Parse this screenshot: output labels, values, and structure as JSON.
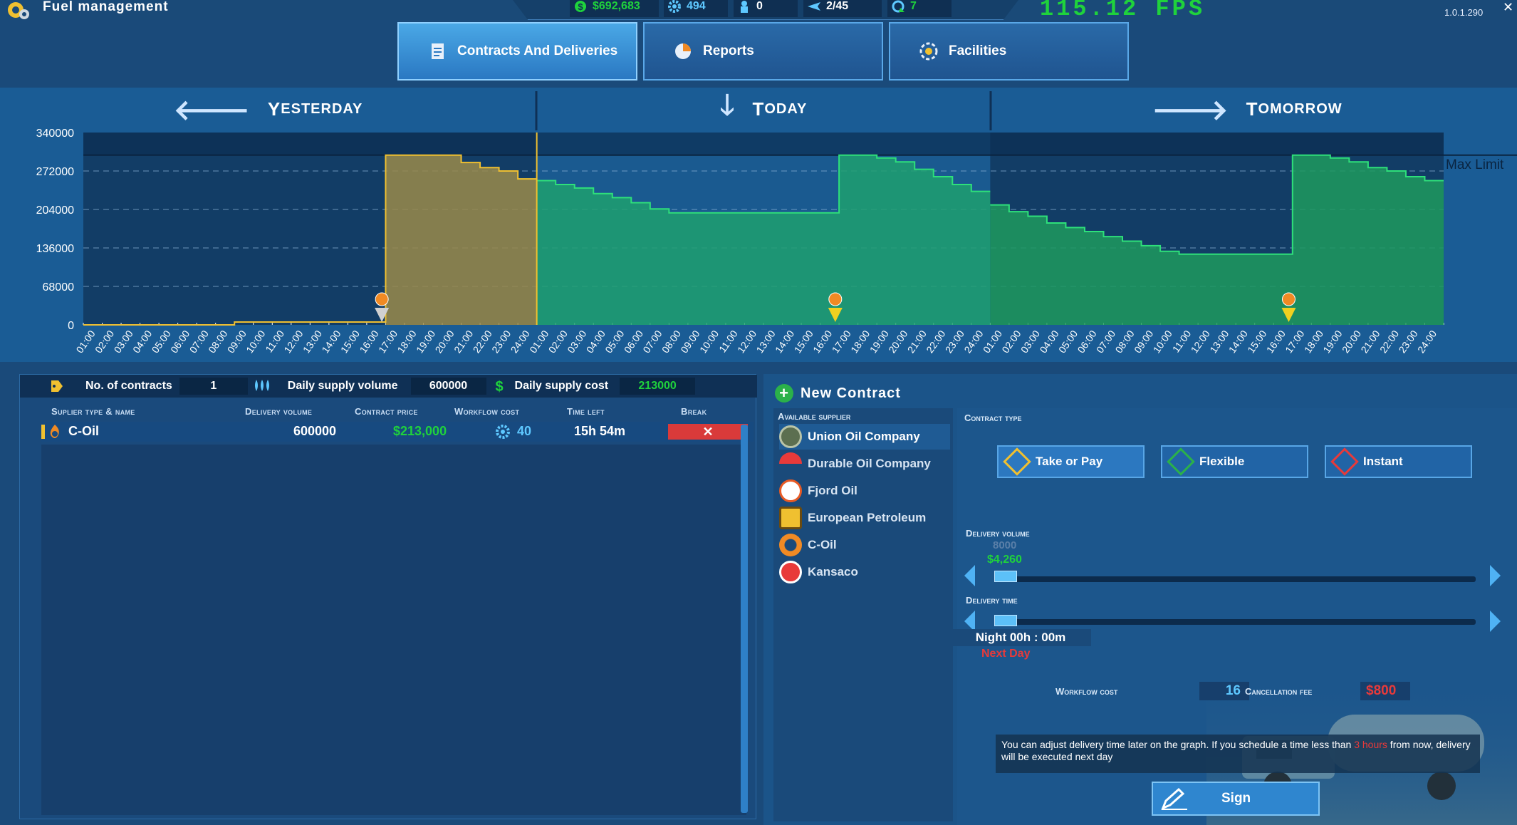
{
  "app": {
    "title": "Fuel management",
    "fps": "115.12 FPS",
    "version": "1.0.1.290"
  },
  "resources": {
    "money": "$692,683",
    "workforce": "494",
    "staff": "0",
    "flights": "2/45",
    "eco": "7"
  },
  "colors": {
    "positive": "#1fd23c",
    "negative": "#e83a3a",
    "accent": "#5ec8ff",
    "gold": "#f0c030"
  },
  "tabs": [
    {
      "label": "Contracts And Deliveries",
      "icon": "document-icon",
      "active": true
    },
    {
      "label": "Reports",
      "icon": "pie-chart-icon",
      "active": false
    },
    {
      "label": "Facilities",
      "icon": "facility-icon",
      "active": false
    }
  ],
  "days": [
    {
      "first": "Y",
      "rest": "ESTERDAY",
      "arrow": "left-arrow-icon"
    },
    {
      "first": "T",
      "rest": "ODAY",
      "arrow": "down-arrow-icon"
    },
    {
      "first": "T",
      "rest": "OMORROW",
      "arrow": "right-arrow-icon"
    }
  ],
  "chart_data": {
    "type": "area",
    "ylim": [
      0,
      340000
    ],
    "yticks": [
      "340000",
      "272000",
      "204000",
      "136000",
      "68000",
      "0"
    ],
    "max_limit_label": "Max Limit",
    "max_limit": 300000,
    "x_labels": [
      "01:00",
      "02:00",
      "03:00",
      "04:00",
      "05:00",
      "06:00",
      "07:00",
      "08:00",
      "09:00",
      "10:00",
      "11:00",
      "12:00",
      "13:00",
      "14:00",
      "15:00",
      "16:00",
      "17:00",
      "18:00",
      "19:00",
      "20:00",
      "21:00",
      "22:00",
      "23:00",
      "24:00",
      "01:00",
      "02:00",
      "03:00",
      "04:00",
      "05:00",
      "06:00",
      "07:00",
      "08:00",
      "09:00",
      "10:00",
      "11:00",
      "12:00",
      "13:00",
      "14:00",
      "15:00",
      "16:00",
      "17:00",
      "18:00",
      "19:00",
      "20:00",
      "21:00",
      "22:00",
      "23:00",
      "24:00",
      "01:00",
      "02:00",
      "03:00",
      "04:00",
      "05:00",
      "06:00",
      "07:00",
      "08:00",
      "09:00",
      "10:00",
      "11:00",
      "12:00",
      "13:00",
      "14:00",
      "15:00",
      "16:00",
      "17:00",
      "18:00",
      "19:00",
      "20:00",
      "21:00",
      "22:00",
      "23:00",
      "24:00"
    ],
    "series": [
      {
        "day": "yesterday",
        "hours": [
          0,
          0,
          0,
          0,
          0,
          0,
          0,
          0,
          5000,
          5000,
          5000,
          5000,
          5000,
          5000,
          5000,
          5000,
          300000,
          300000,
          300000,
          300000,
          287000,
          278000,
          272000,
          258000
        ]
      },
      {
        "day": "today",
        "hours": [
          255000,
          248000,
          242000,
          232000,
          225000,
          216000,
          205000,
          198000,
          198000,
          198000,
          198000,
          198000,
          198000,
          198000,
          198000,
          198000,
          300000,
          300000,
          295000,
          288000,
          275000,
          262000,
          248000,
          236000
        ]
      },
      {
        "day": "tomorrow",
        "hours": [
          212000,
          200000,
          192000,
          180000,
          172000,
          165000,
          156000,
          148000,
          140000,
          130000,
          125000,
          125000,
          125000,
          125000,
          125000,
          125000,
          300000,
          300000,
          295000,
          288000,
          278000,
          272000,
          262000,
          255000
        ]
      }
    ]
  },
  "summary": {
    "contracts_label": "No. of contracts",
    "contracts_value": "1",
    "volume_label": "Daily supply volume",
    "volume_value": "600000",
    "cost_label": "Daily supply cost",
    "cost_value": "213000"
  },
  "table": {
    "headers": [
      "Suplier type & name",
      "Delivery volume",
      "Contract price",
      "Workflow cost",
      "Time left",
      "Break"
    ],
    "row": {
      "name": "C-Oil",
      "volume": "600000",
      "price": "$213,000",
      "workflow": "40",
      "time_left": "15h 54m"
    }
  },
  "new_contract": {
    "title": "New Contract",
    "supplier_label": "Available supplier",
    "suppliers": [
      {
        "name": "Union Oil Company",
        "logo": "union-oil-logo",
        "selected": true
      },
      {
        "name": "Durable Oil Company",
        "logo": "durable-oil-logo",
        "selected": false
      },
      {
        "name": "Fjord Oil",
        "logo": "fjord-oil-logo",
        "selected": false
      },
      {
        "name": "European Petroleum",
        "logo": "european-petroleum-logo",
        "selected": false
      },
      {
        "name": "C-Oil",
        "logo": "c-oil-logo",
        "selected": false
      },
      {
        "name": "Kansaco",
        "logo": "kansaco-logo",
        "selected": false
      }
    ],
    "type_label": "Contract type",
    "types": [
      {
        "label": "Take or Pay",
        "color": "#f0c030",
        "selected": true
      },
      {
        "label": "Flexible",
        "color": "#2bb14a",
        "selected": false
      },
      {
        "label": "Instant",
        "color": "#e83a3a",
        "selected": false
      }
    ],
    "volume_label": "Delivery volume",
    "volume_value": "8000",
    "volume_price": "$4,260",
    "time_label": "Delivery time",
    "time_value": "Night 00h : 00m",
    "time_day": "Next Day",
    "workflow_label": "Workflow cost",
    "workflow_value": "16",
    "cancel_label": "Cancellation fee",
    "cancel_value": "$800",
    "info_pre": "You can adjust delivery time later on the graph. If you schedule a time less than ",
    "info_hl": "3 hours",
    "info_post": " from now, delivery will be executed next day",
    "sign_label": "Sign"
  }
}
